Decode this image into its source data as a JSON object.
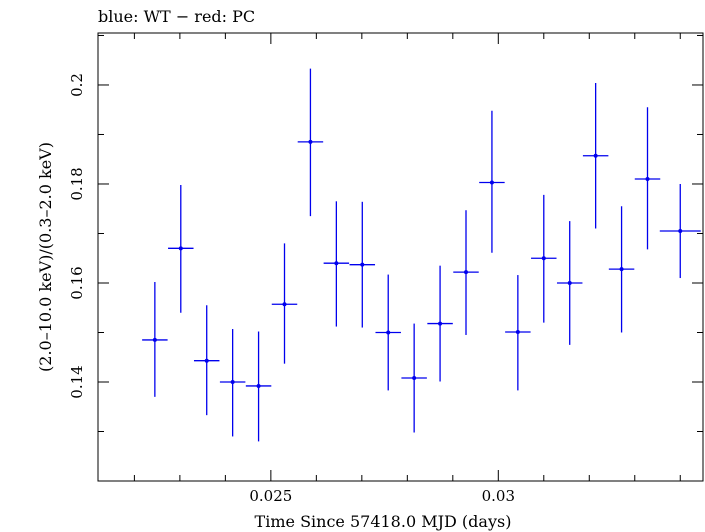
{
  "chart_data": {
    "type": "scatter",
    "title": "blue: WT − red: PC",
    "xlabel": "Time Since 57418.0 MJD (days)",
    "ylabel": "(2.0–10.0 keV)/(0.3–2.0 keV)",
    "xlim": [
      0.0212,
      0.0345
    ],
    "ylim": [
      0.12,
      0.2105
    ],
    "x_ticks": [
      0.025,
      0.03
    ],
    "x_tick_labels": [
      "0.025",
      "0.03"
    ],
    "x_minor_step": 0.001,
    "y_ticks": [
      0.14,
      0.16,
      0.18,
      0.2
    ],
    "y_tick_labels": [
      "0.14",
      "0.16",
      "0.18",
      "0.2"
    ],
    "y_minor_step": 0.01,
    "grid": false,
    "series": [
      {
        "color": "#0000ee",
        "points": [
          {
            "x": 0.02245,
            "xerr": 0.00028,
            "y": 0.1485,
            "yerr_low": 0.0115,
            "yerr_high": 0.0117
          },
          {
            "x": 0.02302,
            "xerr": 0.00028,
            "y": 0.167,
            "yerr_low": 0.013,
            "yerr_high": 0.0128
          },
          {
            "x": 0.02359,
            "xerr": 0.00028,
            "y": 0.1443,
            "yerr_low": 0.011,
            "yerr_high": 0.0112
          },
          {
            "x": 0.02416,
            "xerr": 0.00028,
            "y": 0.14,
            "yerr_low": 0.011,
            "yerr_high": 0.0107
          },
          {
            "x": 0.02473,
            "xerr": 0.00028,
            "y": 0.1392,
            "yerr_low": 0.0112,
            "yerr_high": 0.011
          },
          {
            "x": 0.0253,
            "xerr": 0.00028,
            "y": 0.1557,
            "yerr_low": 0.012,
            "yerr_high": 0.0123
          },
          {
            "x": 0.02587,
            "xerr": 0.00028,
            "y": 0.1885,
            "yerr_low": 0.015,
            "yerr_high": 0.0148
          },
          {
            "x": 0.02644,
            "xerr": 0.00028,
            "y": 0.164,
            "yerr_low": 0.0128,
            "yerr_high": 0.0125
          },
          {
            "x": 0.02701,
            "xerr": 0.00028,
            "y": 0.1637,
            "yerr_low": 0.0127,
            "yerr_high": 0.0127
          },
          {
            "x": 0.02758,
            "xerr": 0.00028,
            "y": 0.15,
            "yerr_low": 0.0117,
            "yerr_high": 0.0117
          },
          {
            "x": 0.02815,
            "xerr": 0.00028,
            "y": 0.1408,
            "yerr_low": 0.011,
            "yerr_high": 0.011
          },
          {
            "x": 0.02872,
            "xerr": 0.00028,
            "y": 0.1518,
            "yerr_low": 0.0117,
            "yerr_high": 0.0117
          },
          {
            "x": 0.02929,
            "xerr": 0.00028,
            "y": 0.1622,
            "yerr_low": 0.0127,
            "yerr_high": 0.0125
          },
          {
            "x": 0.02986,
            "xerr": 0.00028,
            "y": 0.1803,
            "yerr_low": 0.0142,
            "yerr_high": 0.0145
          },
          {
            "x": 0.03043,
            "xerr": 0.00028,
            "y": 0.1501,
            "yerr_low": 0.0118,
            "yerr_high": 0.0115
          },
          {
            "x": 0.031,
            "xerr": 0.00028,
            "y": 0.165,
            "yerr_low": 0.013,
            "yerr_high": 0.0128
          },
          {
            "x": 0.03157,
            "xerr": 0.00028,
            "y": 0.16,
            "yerr_low": 0.0125,
            "yerr_high": 0.0125
          },
          {
            "x": 0.03214,
            "xerr": 0.00028,
            "y": 0.1857,
            "yerr_low": 0.0147,
            "yerr_high": 0.0147
          },
          {
            "x": 0.03271,
            "xerr": 0.00028,
            "y": 0.1628,
            "yerr_low": 0.0128,
            "yerr_high": 0.0127
          },
          {
            "x": 0.03328,
            "xerr": 0.00028,
            "y": 0.181,
            "yerr_low": 0.0142,
            "yerr_high": 0.0145
          },
          {
            "x": 0.034,
            "xerr": 0.00045,
            "y": 0.1705,
            "yerr_low": 0.0095,
            "yerr_high": 0.0095
          }
        ]
      }
    ]
  }
}
